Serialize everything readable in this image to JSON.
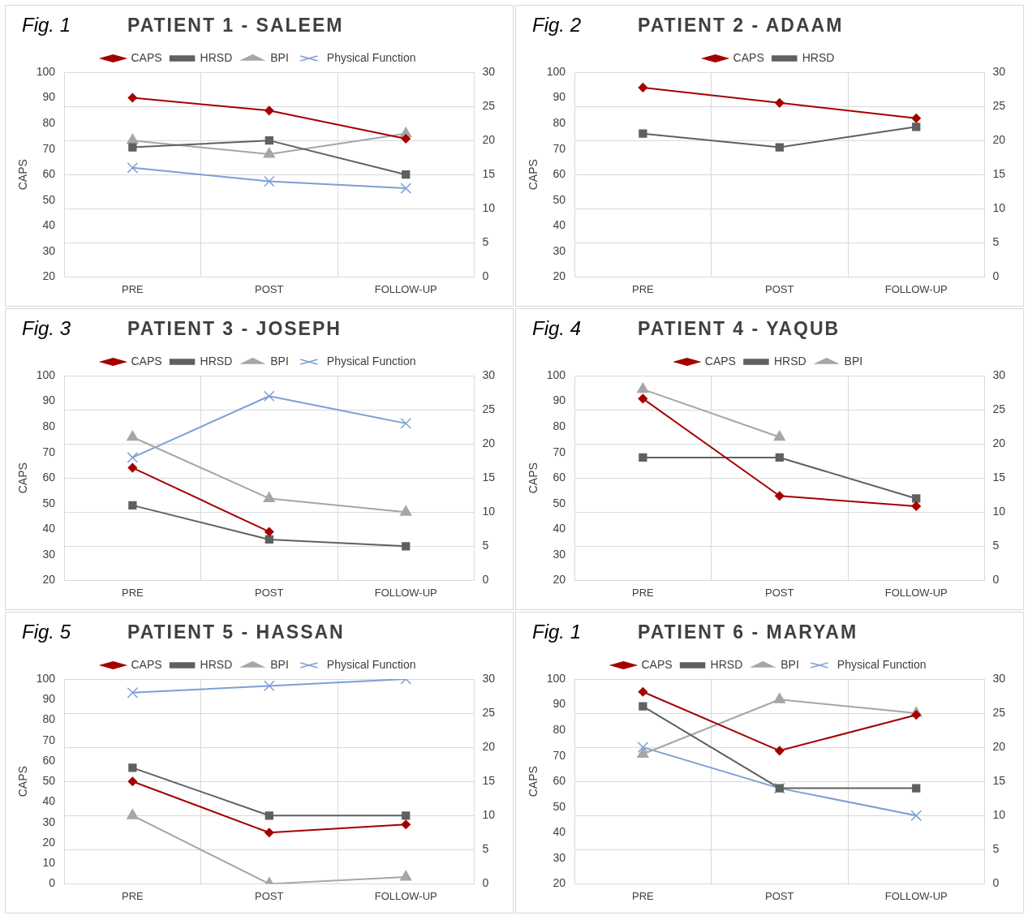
{
  "chart_data": [
    {
      "type": "line",
      "title": "PATIENT 1 - SALEEM",
      "annotations": [
        "Fig. 1"
      ],
      "ylabel": "CAPS",
      "categories": [
        "PRE",
        "POST",
        "FOLLOW-UP"
      ],
      "ylim": [
        20,
        100
      ],
      "yticks": [
        20,
        30,
        40,
        50,
        60,
        70,
        80,
        90,
        100
      ],
      "y2lim": [
        0,
        30
      ],
      "y2ticks": [
        0,
        5,
        10,
        15,
        20,
        25,
        30
      ],
      "grid": true,
      "legend": "top",
      "series": [
        {
          "name": "CAPS",
          "color": "#a50000",
          "marker": "diamond",
          "values": [
            90,
            85,
            74
          ]
        },
        {
          "name": "HRSD",
          "color": "#606060",
          "marker": "square",
          "axis": "y2",
          "values": [
            19,
            20,
            15
          ]
        },
        {
          "name": "BPI",
          "color": "#a6a6a6",
          "marker": "triangle",
          "axis": "y2",
          "values": [
            20,
            18,
            21
          ]
        },
        {
          "name": "Physical Function",
          "color": "#7ba0d4",
          "marker": "cross",
          "axis": "y2",
          "values": [
            16,
            14,
            13
          ]
        }
      ]
    },
    {
      "type": "line",
      "title": "PATIENT 2 - ADAAM",
      "annotations": [
        "Fig. 2"
      ],
      "ylabel": "CAPS",
      "categories": [
        "PRE",
        "POST",
        "FOLLOW-UP"
      ],
      "ylim": [
        20,
        100
      ],
      "yticks": [
        20,
        30,
        40,
        50,
        60,
        70,
        80,
        90,
        100
      ],
      "y2lim": [
        0,
        30
      ],
      "y2ticks": [
        0,
        5,
        10,
        15,
        20,
        25,
        30
      ],
      "grid": true,
      "legend": "top",
      "series": [
        {
          "name": "CAPS",
          "color": "#a50000",
          "marker": "diamond",
          "values": [
            94,
            88,
            82
          ]
        },
        {
          "name": "HRSD",
          "color": "#606060",
          "marker": "square",
          "axis": "y2",
          "values": [
            21,
            19,
            22
          ]
        }
      ]
    },
    {
      "type": "line",
      "title": "PATIENT 3 - JOSEPH",
      "annotations": [
        "Fig. 3"
      ],
      "ylabel": "CAPS",
      "categories": [
        "PRE",
        "POST",
        "FOLLOW-UP"
      ],
      "ylim": [
        20,
        100
      ],
      "yticks": [
        20,
        30,
        40,
        50,
        60,
        70,
        80,
        90,
        100
      ],
      "y2lim": [
        0,
        30
      ],
      "y2ticks": [
        0,
        5,
        10,
        15,
        20,
        25,
        30
      ],
      "grid": true,
      "legend": "top",
      "series": [
        {
          "name": "CAPS",
          "color": "#a50000",
          "marker": "diamond",
          "values": [
            64,
            39,
            null
          ]
        },
        {
          "name": "HRSD",
          "color": "#606060",
          "marker": "square",
          "axis": "y2",
          "values": [
            11,
            6,
            5
          ]
        },
        {
          "name": "BPI",
          "color": "#a6a6a6",
          "marker": "triangle",
          "axis": "y2",
          "values": [
            21,
            12,
            10
          ]
        },
        {
          "name": "Physical Function",
          "color": "#7ba0d4",
          "marker": "cross",
          "axis": "y2",
          "values": [
            18,
            27,
            23
          ]
        }
      ]
    },
    {
      "type": "line",
      "title": "PATIENT 4 - YAQUB",
      "annotations": [
        "Fig. 4"
      ],
      "ylabel": "CAPS",
      "categories": [
        "PRE",
        "POST",
        "FOLLOW-UP"
      ],
      "ylim": [
        20,
        100
      ],
      "yticks": [
        20,
        30,
        40,
        50,
        60,
        70,
        80,
        90,
        100
      ],
      "y2lim": [
        0,
        30
      ],
      "y2ticks": [
        0,
        5,
        10,
        15,
        20,
        25,
        30
      ],
      "grid": true,
      "legend": "top",
      "series": [
        {
          "name": "CAPS",
          "color": "#a50000",
          "marker": "diamond",
          "values": [
            91,
            53,
            49
          ]
        },
        {
          "name": "HRSD",
          "color": "#606060",
          "marker": "square",
          "axis": "y2",
          "values": [
            18,
            18,
            12
          ]
        },
        {
          "name": "BPI",
          "color": "#a6a6a6",
          "marker": "triangle",
          "axis": "y2",
          "values": [
            28,
            21,
            null
          ]
        }
      ]
    },
    {
      "type": "line",
      "title": "PATIENT 5 - HASSAN",
      "annotations": [
        "Fig. 5"
      ],
      "ylabel": "CAPS",
      "categories": [
        "PRE",
        "POST",
        "FOLLOW-UP"
      ],
      "ylim": [
        0,
        100
      ],
      "yticks": [
        0,
        10,
        20,
        30,
        40,
        50,
        60,
        70,
        80,
        90,
        100
      ],
      "y2lim": [
        0,
        30
      ],
      "y2ticks": [
        0,
        5,
        10,
        15,
        20,
        25,
        30
      ],
      "grid": true,
      "legend": "top",
      "series": [
        {
          "name": "CAPS",
          "color": "#a50000",
          "marker": "diamond",
          "values": [
            50,
            25,
            29
          ]
        },
        {
          "name": "HRSD",
          "color": "#606060",
          "marker": "square",
          "axis": "y2",
          "values": [
            17,
            10,
            10
          ]
        },
        {
          "name": "BPI",
          "color": "#a6a6a6",
          "marker": "triangle",
          "axis": "y2",
          "values": [
            10,
            0,
            1
          ]
        },
        {
          "name": "Physical Function",
          "color": "#7ba0d4",
          "marker": "cross",
          "axis": "y2",
          "values": [
            28,
            29,
            30
          ]
        }
      ]
    },
    {
      "type": "line",
      "title": "PATIENT 6 - MARYAM",
      "annotations": [
        "Fig. 1"
      ],
      "ylabel": "CAPS",
      "categories": [
        "PRE",
        "POST",
        "FOLLOW-UP"
      ],
      "ylim": [
        20,
        100
      ],
      "yticks": [
        20,
        30,
        40,
        50,
        60,
        70,
        80,
        90,
        100
      ],
      "y2lim": [
        0,
        30
      ],
      "y2ticks": [
        0,
        5,
        10,
        15,
        20,
        25,
        30
      ],
      "grid": true,
      "legend": "top",
      "series": [
        {
          "name": "CAPS",
          "color": "#a50000",
          "marker": "diamond",
          "values": [
            95,
            72,
            86
          ]
        },
        {
          "name": "HRSD",
          "color": "#606060",
          "marker": "square",
          "axis": "y2",
          "values": [
            26,
            14,
            14
          ]
        },
        {
          "name": "BPI",
          "color": "#a6a6a6",
          "marker": "triangle",
          "axis": "y2",
          "values": [
            19,
            27,
            25
          ]
        },
        {
          "name": "Physical Function",
          "color": "#7ba0d4",
          "marker": "cross",
          "axis": "y2",
          "values": [
            20,
            14,
            10
          ]
        }
      ]
    }
  ]
}
